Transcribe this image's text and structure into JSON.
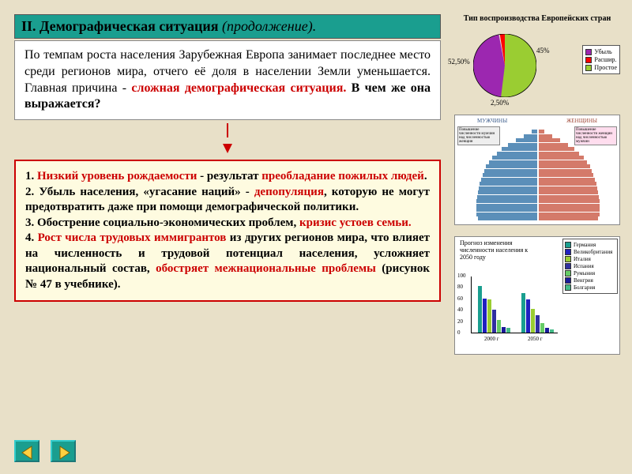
{
  "title": {
    "main": "II. Демографическая ситуация",
    "suffix": "(продолжение)."
  },
  "intro": {
    "p1a": "По темпам роста населения Зарубежная Европа занимает последнее место среди регионов мира, отчего её доля в населении Земли уменьшается. Главная причина - ",
    "p1b": "сложная демографическая ситуация.",
    "p1c": " В чем же она выражается?"
  },
  "list": {
    "n1a": "1. ",
    "n1b": "Низкий уровень рождаемости",
    "n1c": " - результат ",
    "n1d": "преобладание пожилых людей",
    "n1e": ".",
    "n2a": "2. Убыль населения, «угасание наций» - ",
    "n2b": "депопуляция",
    "n2c": ", которую не могут предотвратить даже при помощи демографической политики.",
    "n3a": "3. Обострение социально-экономических проблем, ",
    "n3b": "кризис устоев семьи.",
    "n4a": "4. ",
    "n4b": "Рост числа трудовых иммигрантов",
    "n4c": " из других регионов мира, что влияет на численность и трудовой потенциал населения, усложняет национальный состав, ",
    "n4d": "обостряет межнациональные проблемы",
    "n4e": " (рисунок № 47 в учебнике)."
  },
  "pie": {
    "title": "Тип воспроизводства Европейских стран",
    "labels": {
      "a": "52,50%",
      "b": "45%",
      "c": "2,50%"
    },
    "colors": {
      "a": "#9acd32",
      "b": "#9c27b0",
      "c": "#ff0000"
    },
    "legend": [
      {
        "label": "Убыль",
        "color": "#9c27b0"
      },
      {
        "label": "Расшир.",
        "color": "#ff0000"
      },
      {
        "label": "Простое",
        "color": "#9acd32"
      }
    ]
  },
  "pyramid": {
    "left_label": "МУЖЧИНЫ",
    "right_label": "ЖЕНЩИНЫ",
    "left_box": "Повышение численности мужчин над численностью женщин",
    "right_box": "Повышение численности женщин над численностью мужчин",
    "male_color": "#5b8fb9",
    "female_color": "#d47a6a",
    "bars": [
      8,
      18,
      28,
      38,
      46,
      52,
      58,
      62,
      66,
      68,
      70,
      72,
      74,
      75,
      76,
      77,
      78,
      78,
      78,
      78,
      76
    ]
  },
  "forecast": {
    "title": "Прогноз изменения численности населения к 2050 году",
    "ylim": [
      0,
      100
    ],
    "yticks": [
      0,
      20,
      40,
      60,
      80,
      100
    ],
    "xgroups": [
      "2000 г",
      "2050 г"
    ],
    "series": [
      {
        "name": "Германия",
        "color": "#1a9e8f",
        "v": [
          82,
          70
        ]
      },
      {
        "name": "Великобритания",
        "color": "#2020c0",
        "v": [
          60,
          58
        ]
      },
      {
        "name": "Италия",
        "color": "#9acd32",
        "v": [
          58,
          42
        ]
      },
      {
        "name": "Испания",
        "color": "#3030a0",
        "v": [
          40,
          30
        ]
      },
      {
        "name": "Румыния",
        "color": "#66cc66",
        "v": [
          22,
          16
        ]
      },
      {
        "name": "Венгрия",
        "color": "#1a1a99",
        "v": [
          10,
          8
        ]
      },
      {
        "name": "Болгария",
        "color": "#44bb88",
        "v": [
          8,
          5
        ]
      }
    ]
  },
  "nav": {
    "prev": "prev",
    "next": "next"
  }
}
